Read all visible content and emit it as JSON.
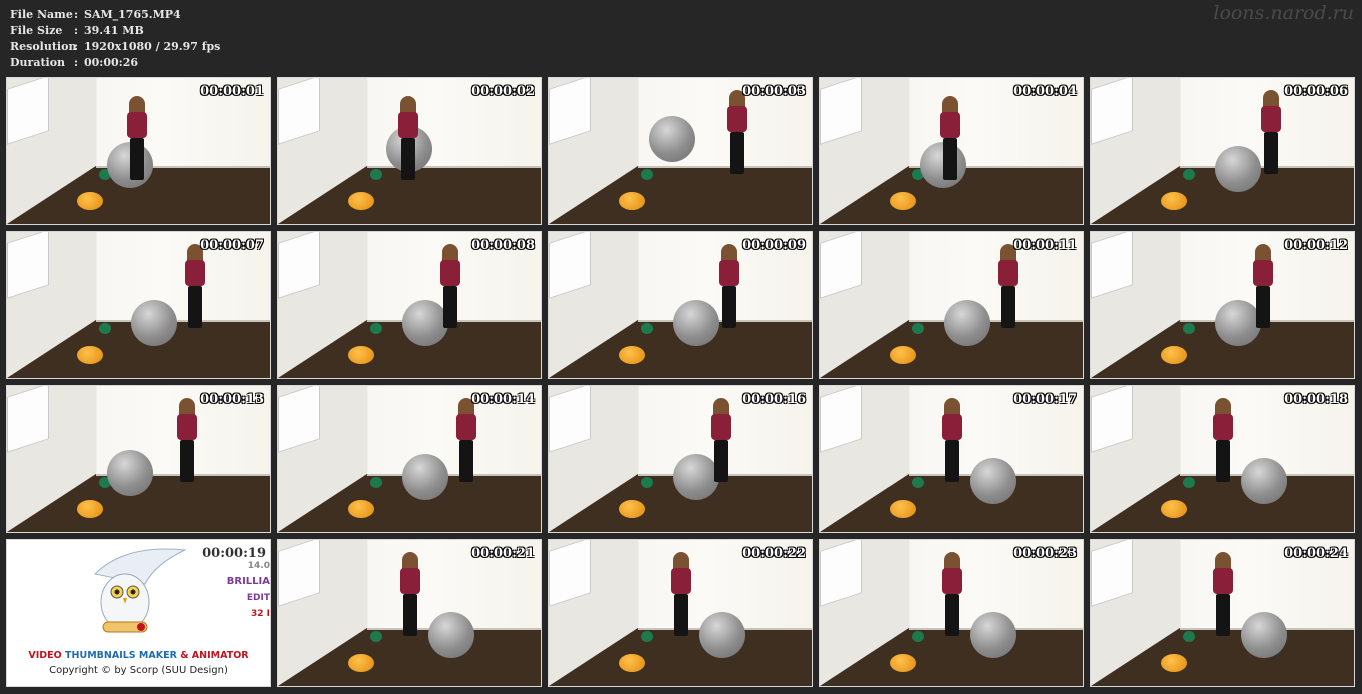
{
  "info": {
    "rows": [
      {
        "key": "File Name",
        "sep": ":",
        "value": "SAM_1765.MP4"
      },
      {
        "key": "File Size",
        "sep": ":",
        "value": "39.41 MB"
      },
      {
        "key": "Resolution",
        "sep": ":",
        "value": "1920x1080 / 29.97 fps"
      },
      {
        "key": "Duration",
        "sep": ":",
        "value": "00:00:26"
      }
    ]
  },
  "watermark": "loons.narod.ru",
  "thumbnails": [
    {
      "timecode": "00:00:01",
      "ball": "floor-left",
      "pose": "bend"
    },
    {
      "timecode": "00:00:02",
      "ball": "mid-air",
      "pose": "bend"
    },
    {
      "timecode": "00:00:03",
      "ball": "high",
      "pose": "stand"
    },
    {
      "timecode": "00:00:04",
      "ball": "floor-left",
      "pose": "bend"
    },
    {
      "timecode": "00:00:06",
      "ball": "floor-mid",
      "pose": "stand"
    },
    {
      "timecode": "00:00:07",
      "ball": "floor-mid",
      "pose": "stand"
    },
    {
      "timecode": "00:00:08",
      "ball": "floor-mid",
      "pose": "stand"
    },
    {
      "timecode": "00:00:09",
      "ball": "floor-mid",
      "pose": "stand"
    },
    {
      "timecode": "00:00:11",
      "ball": "floor-mid",
      "pose": "stand"
    },
    {
      "timecode": "00:00:12",
      "ball": "floor-mid",
      "pose": "stand"
    },
    {
      "timecode": "00:00:13",
      "ball": "floor-left",
      "pose": "stand"
    },
    {
      "timecode": "00:00:14",
      "ball": "floor-mid",
      "pose": "stand"
    },
    {
      "timecode": "00:00:16",
      "ball": "floor-mid",
      "pose": "stand"
    },
    {
      "timecode": "00:00:17",
      "ball": "floor-right",
      "pose": "stand"
    },
    {
      "timecode": "00:00:18",
      "ball": "floor-right",
      "pose": "stand"
    },
    {
      "timecode": "00:00:19",
      "ad": true
    },
    {
      "timecode": "00:00:21",
      "ball": "floor-right",
      "pose": "stand"
    },
    {
      "timecode": "00:00:22",
      "ball": "floor-right",
      "pose": "stand"
    },
    {
      "timecode": "00:00:23",
      "ball": "floor-right",
      "pose": "stand"
    },
    {
      "timecode": "00:00:24",
      "ball": "floor-right",
      "pose": "stand"
    }
  ],
  "ad": {
    "side_lines": [
      "14.0",
      "BRILLIA",
      "EDIT",
      "32 I"
    ],
    "title_part1": "VIDEO ",
    "title_part2": "THUMBNAILS MAKER",
    "title_part3": " & ANIMATOR",
    "copyright": "Copyright © by Scorp (SUU Design)",
    "colors": {
      "red": "#c0141e",
      "blue": "#1f6bb0",
      "purple": "#7a3c9a"
    }
  }
}
